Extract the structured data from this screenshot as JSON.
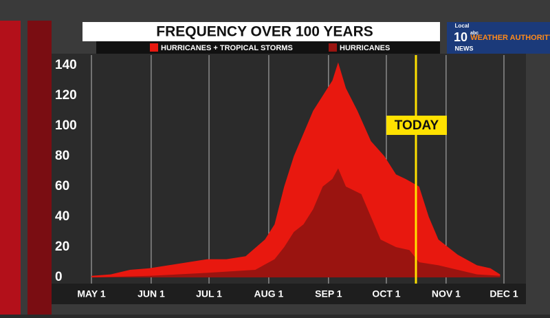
{
  "chart_data": {
    "type": "area",
    "title": "FREQUENCY OVER 100 YEARS",
    "annotation": "TODAY",
    "logo": {
      "local": "Local",
      "channel": "10",
      "network": "abc",
      "news": "NEWS",
      "brand": "WEATHER AUTHORITY"
    },
    "series": [
      {
        "name": "HURRICANES + TROPICAL STORMS",
        "color": "#e8180f",
        "x": [
          0,
          10,
          20,
          30,
          40,
          50,
          60,
          70,
          80,
          90,
          95,
          100,
          105,
          110,
          115,
          120,
          125,
          128,
          132,
          138,
          145,
          152,
          158,
          163,
          170,
          175,
          180,
          190,
          200,
          207,
          212
        ],
        "values": [
          1,
          2,
          5,
          6,
          8,
          10,
          12,
          12,
          14,
          25,
          35,
          60,
          80,
          95,
          110,
          120,
          130,
          142,
          125,
          110,
          90,
          80,
          68,
          65,
          60,
          40,
          25,
          15,
          8,
          6,
          2
        ]
      },
      {
        "name": "HURRICANES",
        "color": "#9a1410",
        "x": [
          0,
          30,
          60,
          85,
          95,
          100,
          105,
          110,
          115,
          120,
          125,
          128,
          132,
          140,
          145,
          150,
          158,
          165,
          170,
          180,
          190,
          200,
          212
        ],
        "values": [
          0,
          1,
          3,
          5,
          12,
          20,
          30,
          35,
          45,
          60,
          65,
          72,
          60,
          55,
          40,
          25,
          20,
          18,
          10,
          8,
          5,
          2,
          1
        ]
      }
    ],
    "xlim": [
      0,
      214
    ],
    "xticks": [
      {
        "value": 0,
        "label": "MAY 1"
      },
      {
        "value": 31,
        "label": "JUN 1"
      },
      {
        "value": 61,
        "label": "JUL 1"
      },
      {
        "value": 92,
        "label": "AUG 1"
      },
      {
        "value": 123,
        "label": "SEP 1"
      },
      {
        "value": 153,
        "label": "OCT 1"
      },
      {
        "value": 184,
        "label": "NOV 1"
      },
      {
        "value": 214,
        "label": "DEC 1"
      }
    ],
    "ylim": [
      0,
      140
    ],
    "yticks": [
      0,
      20,
      40,
      60,
      80,
      100,
      120,
      140
    ],
    "grid": true
  }
}
